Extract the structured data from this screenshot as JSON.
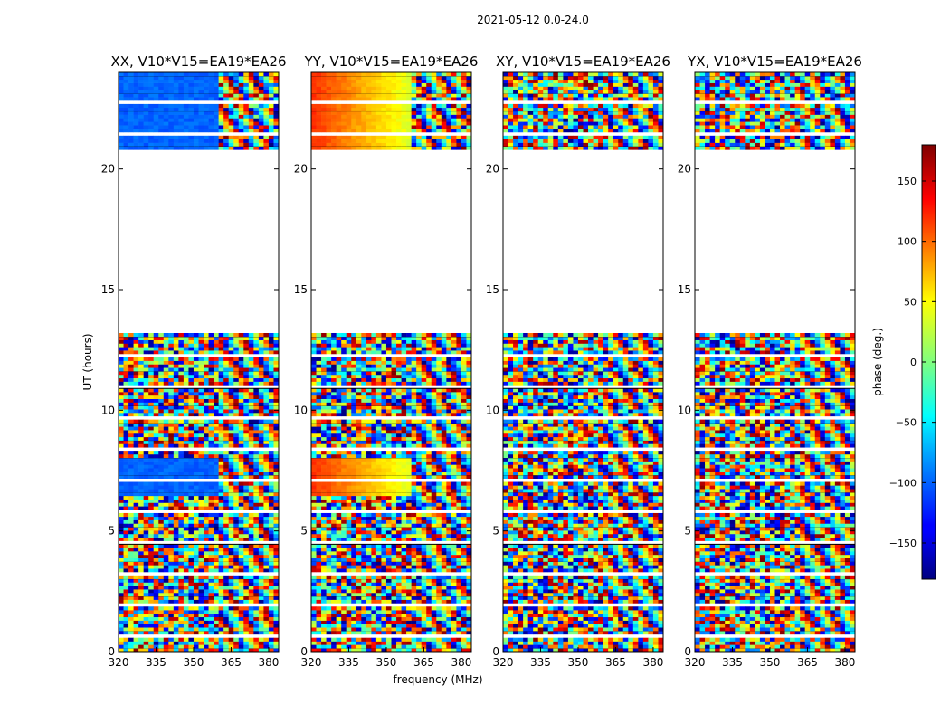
{
  "suptitle": "2021-05-12 0.0-24.0",
  "chart_data": [
    {
      "type": "heatmap",
      "title": "XX, V10*V15=EA19*EA26",
      "xlabel": "frequency (MHz)",
      "ylabel": "UT (hours)",
      "xlim": [
        320,
        384
      ],
      "ylim": [
        0,
        24
      ],
      "xticks": [
        "320",
        "335",
        "350",
        "365",
        "380"
      ],
      "yticks": [
        "0",
        "5",
        "10",
        "15",
        "20"
      ],
      "visible_data_ut_ranges": [
        [
          0,
          13.2
        ],
        [
          20.8,
          24
        ]
      ],
      "phase_pattern": "noisy wrapped phase; smooth band near -100 deg at 6.5-8 h and 21-24 h below ~360 MHz"
    },
    {
      "type": "heatmap",
      "title": "YY, V10*V15=EA19*EA26",
      "xlabel": "frequency (MHz)",
      "ylabel": "",
      "xlim": [
        320,
        384
      ],
      "ylim": [
        0,
        24
      ],
      "xticks": [
        "320",
        "335",
        "350",
        "365",
        "380"
      ],
      "yticks": [
        "0",
        "5",
        "10",
        "15",
        "20"
      ],
      "visible_data_ut_ranges": [
        [
          0,
          13.2
        ],
        [
          20.8,
          24
        ]
      ],
      "phase_pattern": "noisy wrapped phase; smooth gradient from ~+120 deg to ~+30 deg at 6.5-8 h and 21-24 h"
    },
    {
      "type": "heatmap",
      "title": "XY, V10*V15=EA19*EA26",
      "xlabel": "",
      "ylabel": "",
      "xlim": [
        320,
        384
      ],
      "ylim": [
        0,
        24
      ],
      "xticks": [
        "320",
        "335",
        "350",
        "365",
        "380"
      ],
      "yticks": [
        "0",
        "5",
        "10",
        "15",
        "20"
      ],
      "visible_data_ut_ranges": [
        [
          0,
          13.2
        ],
        [
          20.8,
          24
        ]
      ],
      "phase_pattern": "noisy wrapped phase throughout"
    },
    {
      "type": "heatmap",
      "title": "YX, V10*V15=EA19*EA26",
      "xlabel": "",
      "ylabel": "",
      "xlim": [
        320,
        384
      ],
      "ylim": [
        0,
        24
      ],
      "xticks": [
        "320",
        "335",
        "350",
        "365",
        "380"
      ],
      "yticks": [
        "0",
        "5",
        "10",
        "15",
        "20"
      ],
      "visible_data_ut_ranges": [
        [
          0,
          13.2
        ],
        [
          20.8,
          24
        ]
      ],
      "phase_pattern": "noisy wrapped phase throughout"
    }
  ],
  "colorbar": {
    "label": "phase (deg.)",
    "range": [
      -180,
      180
    ],
    "ticks": [
      "150",
      "100",
      "50",
      "0",
      "−50",
      "−100",
      "−150"
    ],
    "tick_values": [
      150,
      100,
      50,
      0,
      -50,
      -100,
      -150
    ],
    "colormap": "jet"
  }
}
